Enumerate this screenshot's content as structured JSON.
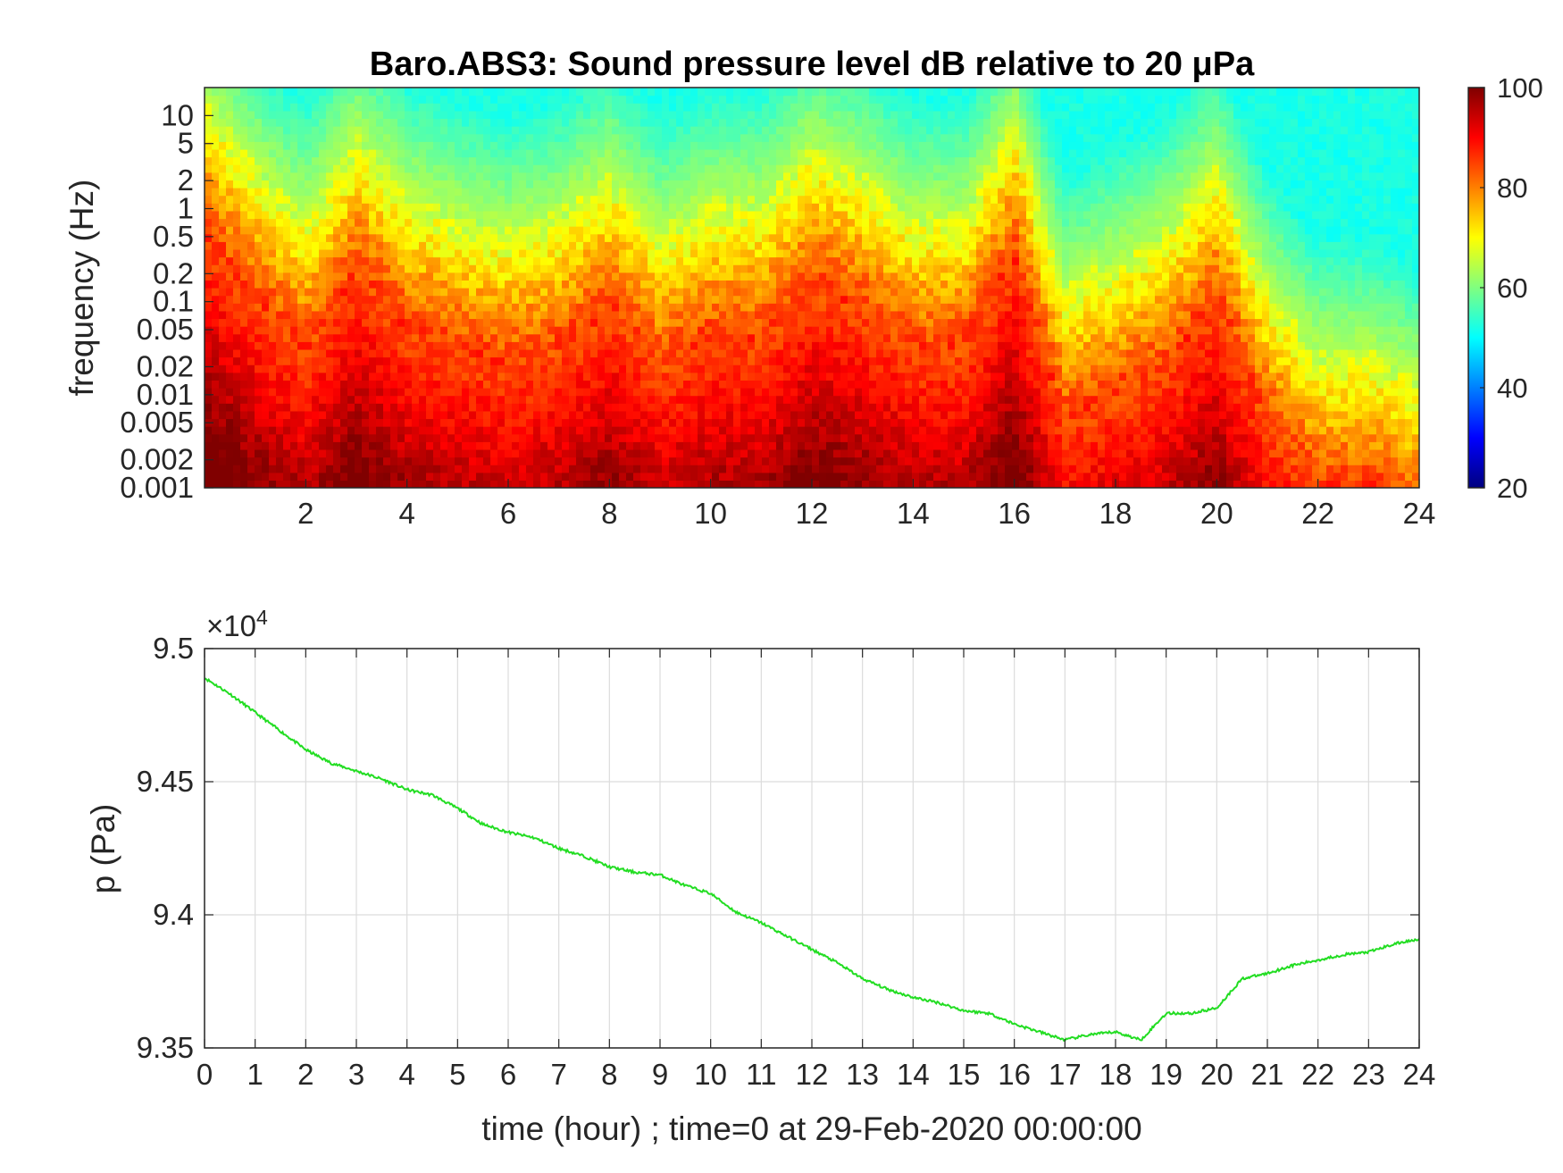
{
  "chart_data": [
    {
      "type": "heatmap",
      "title": "Baro.ABS3: Sound pressure level dB relative to 20 μPa",
      "ylabel": "frequency (Hz)",
      "xlabel": "",
      "x_ticks": [
        2,
        4,
        6,
        8,
        10,
        12,
        14,
        16,
        18,
        20,
        22,
        24
      ],
      "y_ticks": [
        "10",
        "5",
        "2",
        "1",
        "0.5",
        "0.2",
        "0.1",
        "0.05",
        "0.02",
        "0.01",
        "0.005",
        "0.002",
        "0.001"
      ],
      "y_scale": "log",
      "xlim": [
        0,
        24
      ],
      "ylim": [
        0.001,
        20
      ],
      "colorbar": {
        "ticks": [
          20,
          40,
          60,
          80,
          100
        ],
        "range": [
          20,
          100
        ],
        "colormap": "jet"
      },
      "level_profile": {
        "hours": [
          0,
          1,
          2,
          3,
          4,
          5,
          6,
          7,
          8,
          9,
          10,
          11,
          12,
          13,
          14,
          15,
          16,
          17,
          18,
          19,
          20,
          21,
          22,
          23,
          24
        ],
        "cutoff_frequency_hz": [
          5,
          1,
          0.3,
          2,
          0.5,
          0.3,
          0.2,
          0.3,
          0.8,
          0.2,
          0.4,
          0.4,
          1.5,
          0.8,
          0.3,
          0.3,
          3,
          0.05,
          0.1,
          0.2,
          1,
          0.05,
          0.01,
          0.01,
          0.005
        ]
      },
      "colors": {
        "colormap_low": "#00007f",
        "colormap_high": "#7f0000"
      }
    },
    {
      "type": "line",
      "xlabel": "time (hour) ; time=0 at 29-Feb-2020 00:00:00",
      "ylabel": "p (Pa)",
      "y_multiplier": "×10",
      "y_multiplier_exponent": "4",
      "x_ticks": [
        "0",
        "1",
        "2",
        "3",
        "4",
        "5",
        "6",
        "7",
        "8",
        "9",
        "10",
        "11",
        "12",
        "13",
        "14",
        "15",
        "16",
        "17",
        "18",
        "19",
        "20",
        "21",
        "22",
        "23",
        "24"
      ],
      "y_ticks": [
        "9.35",
        "9.4",
        "9.45",
        "9.5"
      ],
      "xlim": [
        0,
        24
      ],
      "ylim": [
        93500,
        95000
      ],
      "grid": true,
      "series": [
        {
          "color": "#22dd22",
          "x": [
            0,
            0.5,
            1,
            1.5,
            2,
            2.5,
            3,
            3.5,
            4,
            4.5,
            5,
            5.5,
            6,
            6.5,
            7,
            7.5,
            8,
            8.5,
            9,
            9.5,
            10,
            10.5,
            11,
            11.5,
            12,
            12.5,
            13,
            13.5,
            14,
            14.5,
            15,
            15.5,
            16,
            16.5,
            17,
            17.5,
            18,
            18.5,
            19,
            19.5,
            20,
            20.5,
            21,
            21.5,
            22,
            22.5,
            23,
            23.5,
            24
          ],
          "y": [
            94890,
            94830,
            94760,
            94690,
            94620,
            94570,
            94540,
            94510,
            94470,
            94450,
            94400,
            94340,
            94310,
            94290,
            94250,
            94220,
            94180,
            94160,
            94150,
            94110,
            94080,
            94010,
            93970,
            93920,
            93870,
            93820,
            93760,
            93720,
            93690,
            93670,
            93640,
            93630,
            93590,
            93560,
            93530,
            93550,
            93560,
            93530,
            93630,
            93630,
            93650,
            93760,
            93780,
            93810,
            93830,
            93850,
            93860,
            93890,
            93910
          ]
        }
      ]
    }
  ]
}
